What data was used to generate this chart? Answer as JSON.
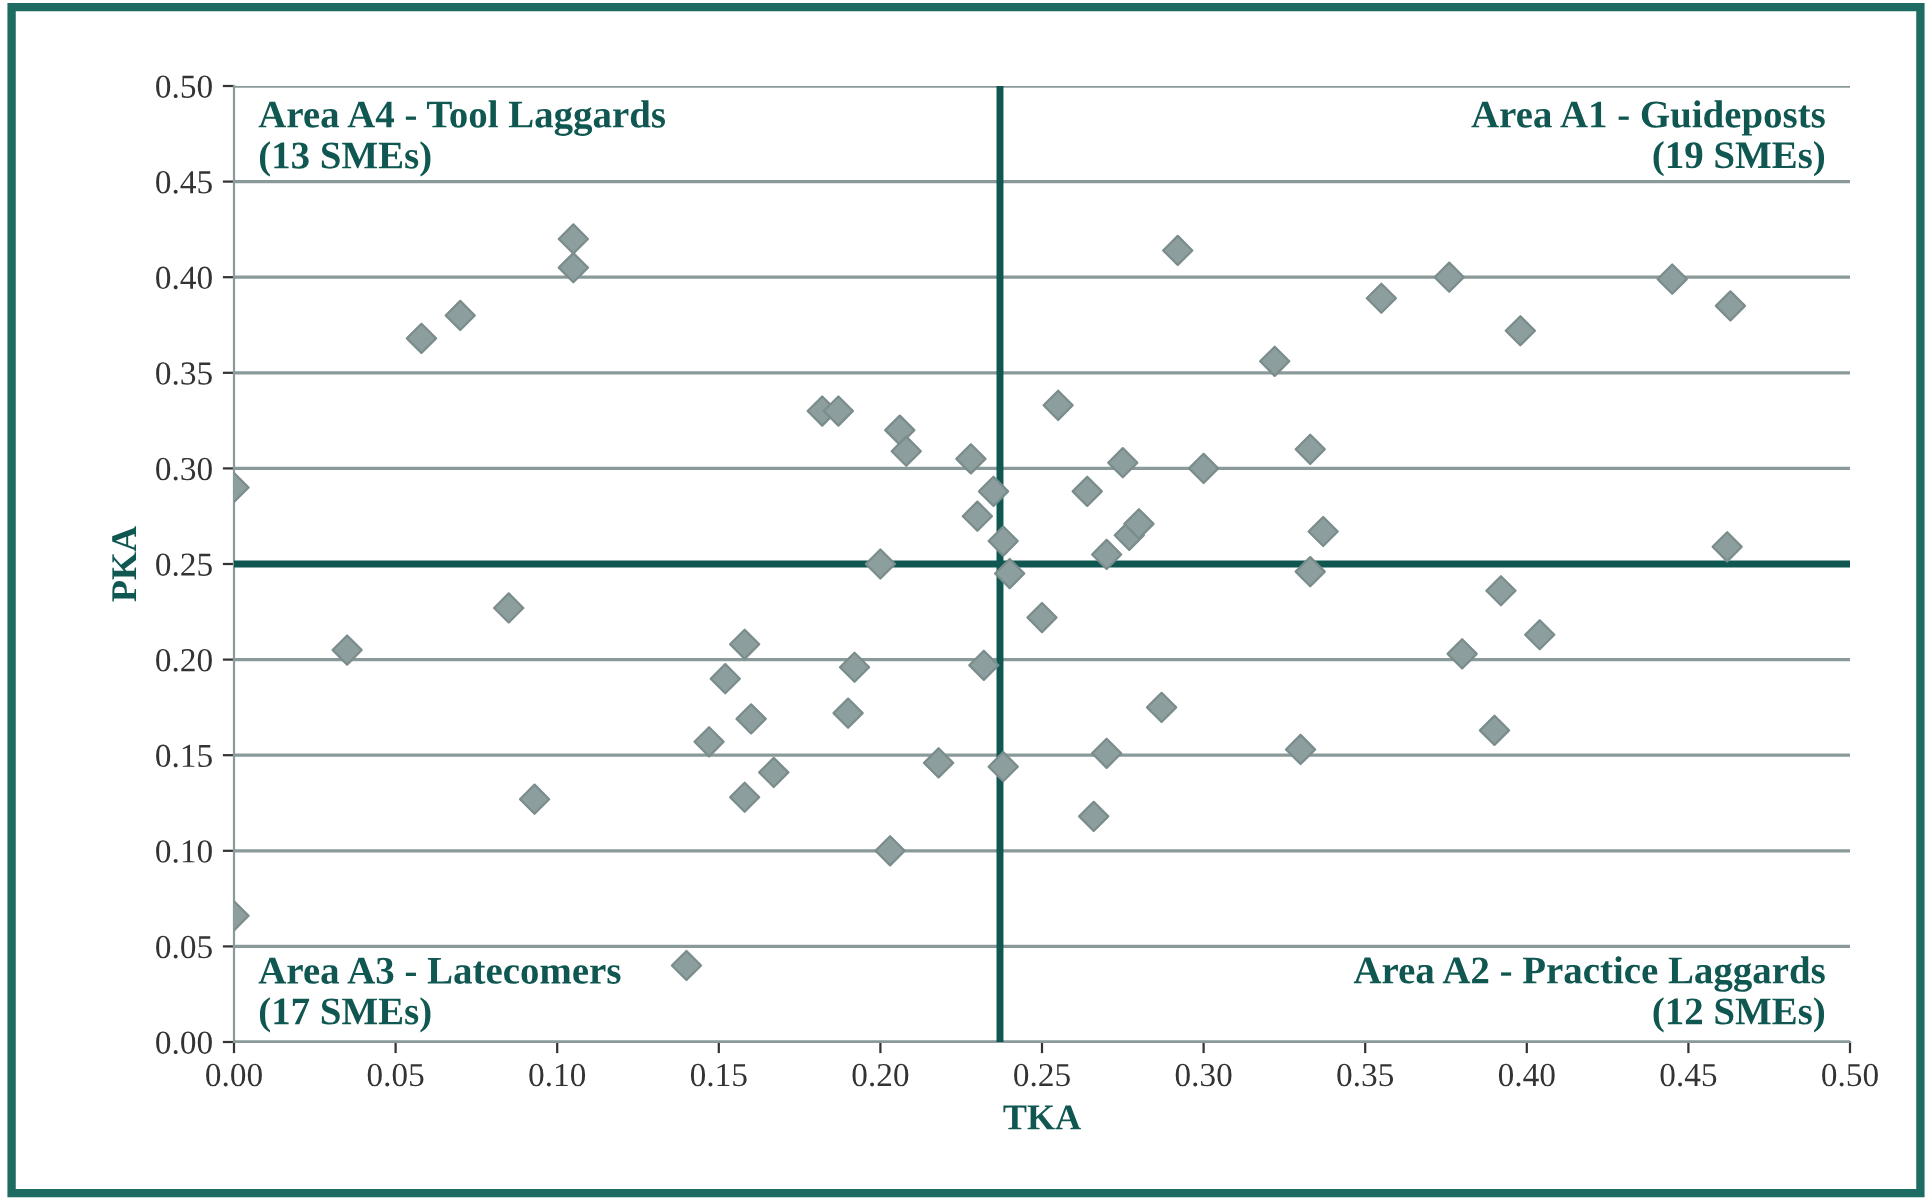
{
  "chart_data": {
    "type": "scatter",
    "xlabel": "TKA",
    "ylabel": "PKA",
    "series": [
      {
        "color": "#8c9e9e",
        "x": [
          0.0,
          0.035,
          0.058,
          0.07,
          0.085,
          0.093,
          0.105,
          0.105,
          0.14,
          0.0,
          0.147,
          0.152,
          0.158,
          0.158,
          0.16,
          0.167,
          0.182,
          0.187,
          0.19,
          0.192,
          0.2,
          0.203,
          0.206,
          0.208,
          0.218,
          0.228,
          0.23,
          0.232,
          0.235,
          0.238,
          0.238,
          0.24,
          0.25,
          0.255,
          0.264,
          0.266,
          0.27,
          0.27,
          0.275,
          0.277,
          0.28,
          0.287,
          0.292,
          0.3,
          0.322,
          0.33,
          0.333,
          0.333,
          0.337,
          0.355,
          0.376,
          0.38,
          0.39,
          0.392,
          0.398,
          0.404,
          0.445,
          0.462,
          0.463
        ],
        "values": [
          0.29,
          0.205,
          0.368,
          0.38,
          0.227,
          0.127,
          0.42,
          0.405,
          0.04,
          0.066,
          0.157,
          0.19,
          0.208,
          0.128,
          0.169,
          0.141,
          0.33,
          0.33,
          0.172,
          0.196,
          0.25,
          0.1,
          0.32,
          0.309,
          0.146,
          0.305,
          0.275,
          0.197,
          0.288,
          0.262,
          0.144,
          0.245,
          0.222,
          0.333,
          0.288,
          0.118,
          0.151,
          0.255,
          0.303,
          0.265,
          0.271,
          0.175,
          0.414,
          0.3,
          0.356,
          0.153,
          0.31,
          0.246,
          0.267,
          0.389,
          0.4,
          0.203,
          0.163,
          0.236,
          0.372,
          0.213,
          0.399,
          0.259,
          0.385
        ]
      }
    ],
    "marker": "diamond",
    "xlim": [
      0,
      0.5
    ],
    "xticks": [
      {
        "value": 0,
        "label": "0.00"
      },
      {
        "value": 0.05,
        "label": "0.05"
      },
      {
        "value": 0.1,
        "label": "0.10"
      },
      {
        "value": 0.15,
        "label": "0.15"
      },
      {
        "value": 0.2,
        "label": "0.20"
      },
      {
        "value": 0.25,
        "label": "0.25"
      },
      {
        "value": 0.3,
        "label": "0.30"
      },
      {
        "value": 0.35,
        "label": "0.35"
      },
      {
        "value": 0.4,
        "label": "0.40"
      },
      {
        "value": 0.45,
        "label": "0.45"
      },
      {
        "value": 0.5,
        "label": "0.50"
      }
    ],
    "ylim": [
      0,
      0.5
    ],
    "yticks": [
      {
        "value": 0,
        "label": "0.00"
      },
      {
        "value": 0.05,
        "label": "0.05"
      },
      {
        "value": 0.1,
        "label": "0.10"
      },
      {
        "value": 0.15,
        "label": "0.15"
      },
      {
        "value": 0.2,
        "label": "0.20"
      },
      {
        "value": 0.25,
        "label": "0.25"
      },
      {
        "value": 0.3,
        "label": "0.30"
      },
      {
        "value": 0.35,
        "label": "0.35"
      },
      {
        "value": 0.4,
        "label": "0.40"
      },
      {
        "value": 0.45,
        "label": "0.45"
      },
      {
        "value": 0.5,
        "label": "0.50"
      }
    ],
    "grid": "y",
    "ref_lines": [
      {
        "axis": "x",
        "value": 0.237,
        "color": "#0f5750"
      },
      {
        "axis": "y",
        "value": 0.25,
        "color": "#0f5750"
      }
    ],
    "annotations": [
      "Area A4 - Tool Laggards\n(13 SMEs)",
      "Area A1 - Guideposts\n(19 SMEs)",
      "Area A3 - Latecomers\n(17 SMEs)",
      "Area A2 - Practice Laggards\n(12 SMEs)"
    ]
  }
}
